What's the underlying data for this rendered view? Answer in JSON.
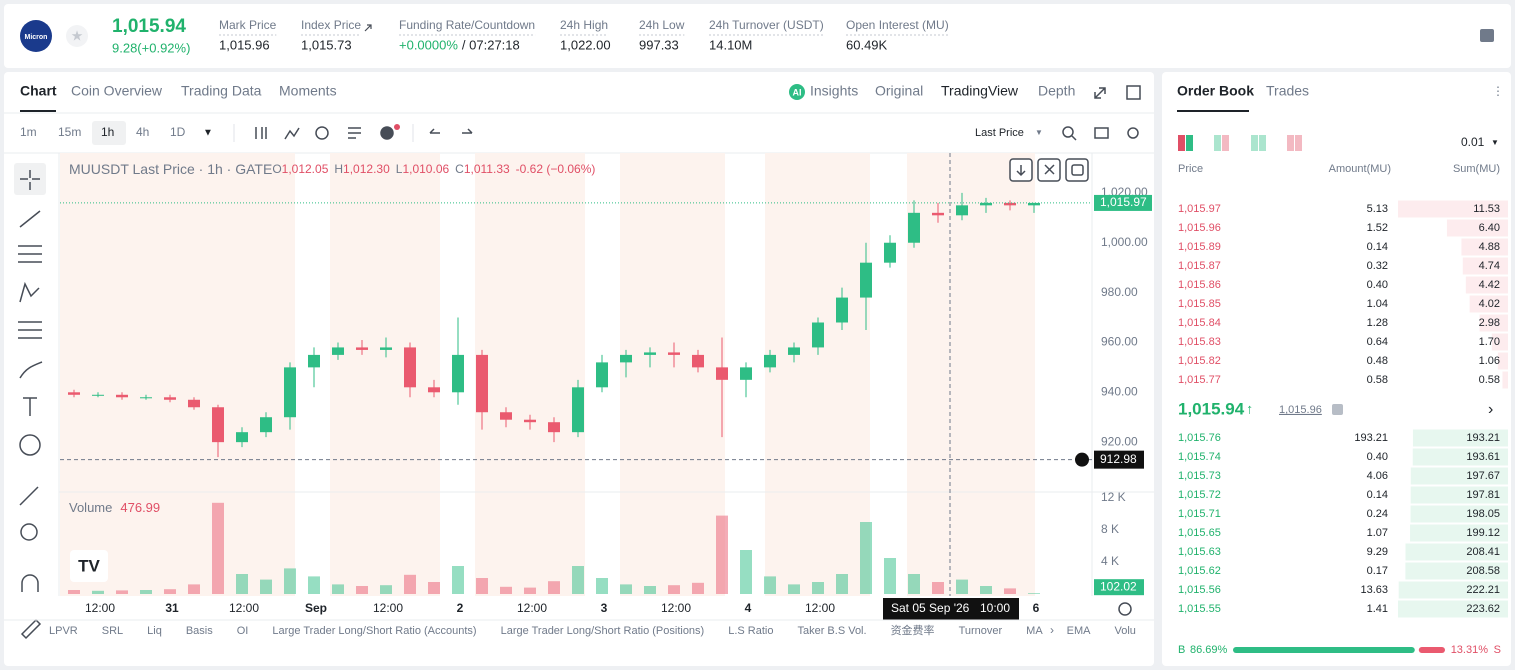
{
  "header": {
    "logo": "Micron",
    "price": "1,015.94",
    "change": "9.28(+0.92%)",
    "stats": [
      {
        "label": "Mark Price",
        "value": "1,015.96"
      },
      {
        "label": "Index Price",
        "value": "1,015.73"
      },
      {
        "label": "Funding Rate/Countdown",
        "value": "+0.0000%",
        "extra": "/ 07:27:18"
      },
      {
        "label": "24h High",
        "value": "1,022.00"
      },
      {
        "label": "24h Low",
        "value": "997.33"
      },
      {
        "label": "24h Turnover (USDT)",
        "value": "14.10M"
      },
      {
        "label": "Open Interest (MU)",
        "value": "60.49K"
      }
    ]
  },
  "tabs": [
    "Chart",
    "Coin Overview",
    "Trading Data",
    "Moments"
  ],
  "views": [
    "Insights",
    "Original",
    "TradingView",
    "Depth"
  ],
  "intervals": [
    "1m",
    "15m",
    "1h",
    "4h",
    "1D"
  ],
  "price_source": "Last Price",
  "chart_data": {
    "type": "candlestick",
    "title": "MUUSDT Last Price · 1h · GATE",
    "ohlc": [
      {
        "key": "O",
        "value": "1,012.05"
      },
      {
        "key": "H",
        "value": "1,012.30"
      },
      {
        "key": "L",
        "value": "1,010.06"
      },
      {
        "key": "C",
        "value": "1,011.33"
      }
    ],
    "change": "-0.62 (−0.06%)",
    "up_color": "#2ebd85",
    "down_color": "#ea5a6f",
    "open": [
      940,
      939,
      939,
      938,
      938,
      937,
      934,
      920,
      924,
      930,
      950,
      955,
      958,
      957,
      958,
      942,
      940,
      955,
      932,
      929,
      928,
      924,
      942,
      952,
      955,
      956,
      955,
      950,
      945,
      950,
      955,
      958,
      968,
      978,
      992,
      1000,
      1012,
      1011,
      1015,
      1016,
      1015
    ],
    "high": [
      941,
      940,
      940,
      939,
      939,
      938,
      935,
      926,
      932,
      952,
      958,
      960,
      961,
      962,
      960,
      945,
      970,
      957,
      934,
      931,
      930,
      945,
      955,
      957,
      958,
      960,
      957,
      962,
      952,
      957,
      960,
      970,
      982,
      1000,
      1003,
      1017,
      1016,
      1020,
      1018,
      1017,
      1016
    ],
    "low": [
      938,
      938,
      937,
      937,
      936,
      933,
      914,
      918,
      922,
      925,
      942,
      953,
      955,
      954,
      938,
      938,
      935,
      925,
      926,
      925,
      920,
      922,
      940,
      946,
      950,
      950,
      948,
      922,
      938,
      948,
      952,
      955,
      965,
      965,
      990,
      998,
      1008,
      1009,
      1012,
      1013,
      1012
    ],
    "close": [
      939,
      939,
      938,
      938,
      937,
      934,
      920,
      924,
      930,
      950,
      955,
      958,
      957,
      958,
      942,
      940,
      955,
      932,
      929,
      928,
      924,
      942,
      952,
      955,
      956,
      955,
      950,
      945,
      950,
      955,
      958,
      968,
      978,
      992,
      1000,
      1012,
      1011,
      1015,
      1016,
      1015,
      1015.97
    ],
    "ylim": [
      900,
      1036
    ],
    "yticks": [
      {
        "value": 920,
        "label": "920.00"
      },
      {
        "value": 940,
        "label": "940.00"
      },
      {
        "value": 960,
        "label": "960.00"
      },
      {
        "value": 980,
        "label": "980.00"
      },
      {
        "value": 1000,
        "label": "1,000.00"
      },
      {
        "value": 1020,
        "label": "1,020.00"
      }
    ],
    "last_price": {
      "value": 1015.97,
      "label": "1,015.97"
    },
    "crosshair_price": 912.98,
    "crosshair_time": [
      "Sat 05 Sep '26",
      "10:00"
    ],
    "x_labels": [
      "12:00",
      "31",
      "12:00",
      "Sep",
      "12:00",
      "2",
      "12:00",
      "3",
      "12:00",
      "4",
      "12:00",
      null,
      null,
      "6"
    ],
    "volume": {
      "name": "Volume",
      "hover_value": "476.99",
      "values": [
        500,
        400,
        450,
        500,
        600,
        1200,
        11400,
        2500,
        1800,
        3200,
        2200,
        1200,
        1000,
        1100,
        2400,
        1500,
        3500,
        2000,
        900,
        800,
        1600,
        3500,
        2000,
        1200,
        1000,
        1100,
        1400,
        9800,
        5500,
        2200,
        1200,
        1500,
        2500,
        9000,
        4500,
        2500,
        1500,
        1800,
        1000,
        700,
        102.02
      ],
      "ylim": [
        0,
        12750
      ],
      "yticks": [
        {
          "value": 4000,
          "label": "4 K"
        },
        {
          "value": 8000,
          "label": "8 K"
        },
        {
          "value": 12000,
          "label": "12 K"
        }
      ]
    }
  },
  "indicators": [
    "LPVR",
    "SRL",
    "Liq",
    "Basis",
    "OI",
    "Large Trader Long/Short Ratio (Accounts)",
    "Large Trader Long/Short Ratio (Positions)",
    "L.S Ratio",
    "Taker B.S Vol.",
    "资金费率",
    "Turnover",
    "MA",
    "EMA",
    "Volu"
  ],
  "order_book": {
    "tabs": [
      "Order Book",
      "Trades"
    ],
    "precision": "0.01",
    "columns": [
      "Price",
      "Amount(MU)",
      "Sum(MU)"
    ],
    "asks": [
      {
        "price": "1,015.97",
        "amount": "5.13",
        "sum": 11.53
      },
      {
        "price": "1,015.96",
        "amount": "1.52",
        "sum": {
          "value": 6.4,
          "label": "6.40"
        }
      },
      {
        "price": "1,015.89",
        "amount": "0.14",
        "sum": 4.88
      },
      {
        "price": "1,015.87",
        "amount": "0.32",
        "sum": 4.74
      },
      {
        "price": "1,015.86",
        "amount": "0.40",
        "sum": 4.42
      },
      {
        "price": "1,015.85",
        "amount": "1.04",
        "sum": 4.02
      },
      {
        "price": "1,015.84",
        "amount": "1.28",
        "sum": 2.98
      },
      {
        "price": "1,015.83",
        "amount": "0.64",
        "sum": {
          "value": 1.7,
          "label": "1.70"
        }
      },
      {
        "price": "1,015.82",
        "amount": "0.48",
        "sum": 1.06
      },
      {
        "price": "1,015.77",
        "amount": "0.58",
        "sum": 0.58
      }
    ],
    "mid_price": "1,015.94",
    "mark_price": "1,015.96",
    "bids": [
      {
        "price": "1,015.76",
        "amount": "193.21",
        "sum": 193.21
      },
      {
        "price": "1,015.74",
        "amount": "0.40",
        "sum": 193.61
      },
      {
        "price": "1,015.73",
        "amount": "4.06",
        "sum": 197.67
      },
      {
        "price": "1,015.72",
        "amount": "0.14",
        "sum": 197.81
      },
      {
        "price": "1,015.71",
        "amount": "0.24",
        "sum": 198.05
      },
      {
        "price": "1,015.65",
        "amount": "1.07",
        "sum": 199.12
      },
      {
        "price": "1,015.63",
        "amount": "9.29",
        "sum": 208.41
      },
      {
        "price": "1,015.62",
        "amount": "0.17",
        "sum": 208.58
      },
      {
        "price": "1,015.56",
        "amount": "13.63",
        "sum": 222.21
      },
      {
        "price": "1,015.55",
        "amount": "1.41",
        "sum": 223.62
      }
    ],
    "ratio": {
      "labels": [
        "B",
        "S"
      ],
      "values": [
        86.69,
        13.31
      ],
      "value_labels": [
        "86.69%",
        "13.31%"
      ]
    }
  }
}
